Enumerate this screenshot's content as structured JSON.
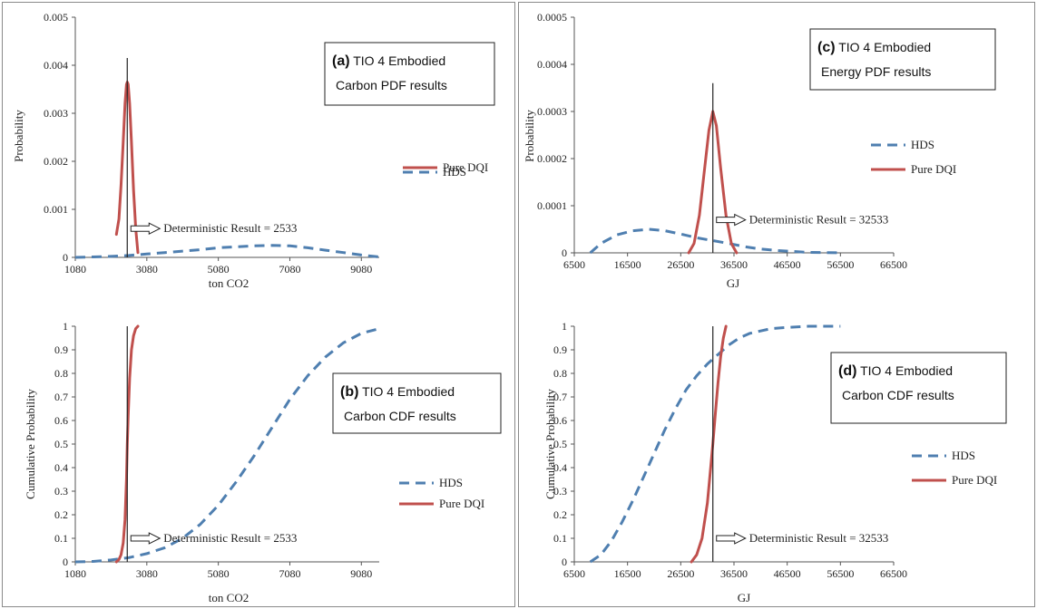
{
  "colors": {
    "hds": "#4f7fb0",
    "pure_dqi": "#c0504d",
    "line": "#222222"
  },
  "chart_data": [
    {
      "id": "a",
      "type": "line",
      "title_bold": "(a)",
      "title_line1": "TIO 4 Embodied",
      "title_line2": "Carbon PDF results",
      "xlabel": "ton CO2",
      "ylabel": "Probability",
      "xlim": [
        1080,
        9580
      ],
      "ylim": [
        0,
        0.005
      ],
      "xticks": [
        1080,
        3080,
        5080,
        7080,
        9080
      ],
      "yticks": [
        0,
        0.001,
        0.002,
        0.003,
        0.004,
        0.005
      ],
      "ytick_labels": [
        "0",
        "0.001",
        "0.002",
        "0.003",
        "0.004",
        "0.005"
      ],
      "deterministic": {
        "value": 2533,
        "label": "Deterministic Result = 2533",
        "arrow_y": 0.0006,
        "line_top": 0.00415
      },
      "series": [
        {
          "name": "HDS",
          "style": "dashed",
          "x": [
            1080,
            1580,
            2080,
            2580,
            3080,
            3580,
            4080,
            4580,
            5080,
            5580,
            6080,
            6580,
            7080,
            7580,
            8080,
            8580,
            9080,
            9580
          ],
          "y": [
            0,
            1e-05,
            2e-05,
            4e-05,
            7e-05,
            0.0001,
            0.00013,
            0.00016,
            0.0002,
            0.00022,
            0.00024,
            0.00025,
            0.00024,
            0.0002,
            0.00015,
            0.0001,
            5e-05,
            1e-05
          ]
        },
        {
          "name": "Pure DQI",
          "style": "solid",
          "x": [
            2230,
            2300,
            2360,
            2420,
            2470,
            2510,
            2533,
            2560,
            2600,
            2650,
            2710,
            2770,
            2830
          ],
          "y": [
            0.00048,
            0.0008,
            0.0015,
            0.0024,
            0.0032,
            0.0036,
            0.00365,
            0.0036,
            0.0032,
            0.0024,
            0.0014,
            0.0006,
            0.0001
          ]
        }
      ]
    },
    {
      "id": "b",
      "type": "line",
      "title_bold": "(b)",
      "title_line1": "TIO 4 Embodied",
      "title_line2": "Carbon CDF results",
      "xlabel": "ton CO2",
      "ylabel": "Cumulative Probability",
      "xlim": [
        1080,
        9580
      ],
      "ylim": [
        0,
        1
      ],
      "xticks": [
        1080,
        3080,
        5080,
        7080,
        9080
      ],
      "yticks": [
        0,
        0.1,
        0.2,
        0.3,
        0.4,
        0.5,
        0.6,
        0.7,
        0.8,
        0.9,
        1
      ],
      "ytick_labels": [
        "0",
        "0.1",
        "0.2",
        "0.3",
        "0.4",
        "0.5",
        "0.6",
        "0.7",
        "0.8",
        "0.9",
        "1"
      ],
      "deterministic": {
        "value": 2533,
        "label": "Deterministic Result = 2533",
        "arrow_y": 0.1,
        "line_top": 1
      },
      "series": [
        {
          "name": "HDS",
          "style": "dashed",
          "x": [
            1080,
            1580,
            2080,
            2580,
            3080,
            3580,
            4080,
            4580,
            5080,
            5580,
            6080,
            6580,
            7080,
            7580,
            8080,
            8580,
            9080,
            9580
          ],
          "y": [
            0,
            0.002,
            0.008,
            0.018,
            0.035,
            0.06,
            0.1,
            0.16,
            0.24,
            0.34,
            0.45,
            0.57,
            0.69,
            0.79,
            0.87,
            0.93,
            0.97,
            0.99
          ]
        },
        {
          "name": "Pure DQI",
          "style": "solid",
          "x": [
            2230,
            2300,
            2360,
            2420,
            2470,
            2510,
            2533,
            2560,
            2600,
            2650,
            2710,
            2770,
            2830
          ],
          "y": [
            0,
            0.01,
            0.03,
            0.08,
            0.18,
            0.35,
            0.5,
            0.62,
            0.78,
            0.9,
            0.96,
            0.99,
            1
          ]
        }
      ]
    },
    {
      "id": "c",
      "type": "line",
      "title_bold": "(c)",
      "title_line1": "TIO 4 Embodied",
      "title_line2": "Energy PDF results",
      "xlabel": "GJ",
      "ylabel": "Probability",
      "xlim": [
        6500,
        66500
      ],
      "ylim": [
        0,
        0.0005
      ],
      "xticks": [
        6500,
        16500,
        26500,
        36500,
        46500,
        56500,
        66500
      ],
      "yticks": [
        0,
        0.0001,
        0.0002,
        0.0003,
        0.0004,
        0.0005
      ],
      "ytick_labels": [
        "0",
        "0.0001",
        "0.0002",
        "0.0003",
        "0.0004",
        "0.0005"
      ],
      "deterministic": {
        "value": 32533,
        "label": "Deterministic Result = 32533",
        "arrow_y": 7e-05,
        "line_top": 0.00036
      },
      "series": [
        {
          "name": "HDS",
          "style": "dashed",
          "x": [
            9500,
            11500,
            14500,
            17500,
            20500,
            23500,
            26500,
            29500,
            32500,
            35500,
            38500,
            41500,
            44500,
            47500,
            50500,
            53500,
            56500
          ],
          "y": [
            0,
            2e-05,
            3.8e-05,
            4.7e-05,
            5e-05,
            4.7e-05,
            4e-05,
            3.2e-05,
            2.6e-05,
            2e-05,
            1.3e-05,
            8e-06,
            5e-06,
            3e-06,
            1e-06,
            5e-07,
            0
          ]
        },
        {
          "name": "Pure DQI",
          "style": "solid",
          "x": [
            28000,
            29000,
            30000,
            31000,
            31800,
            32533,
            33200,
            34000,
            35000,
            36000,
            37000
          ],
          "y": [
            0,
            2e-05,
            8e-05,
            0.00018,
            0.00026,
            0.0003,
            0.00027,
            0.00018,
            8e-05,
            2e-05,
            0
          ]
        }
      ]
    },
    {
      "id": "d",
      "type": "line",
      "title_bold": "(d)",
      "title_line1": "TIO 4 Embodied",
      "title_line2": "Carbon CDF results",
      "xlabel": "GJ",
      "ylabel": "Cumulative Probability",
      "xlim": [
        6500,
        66500
      ],
      "ylim": [
        0,
        1
      ],
      "xticks": [
        6500,
        16500,
        26500,
        36500,
        46500,
        56500,
        66500
      ],
      "yticks": [
        0,
        0.1,
        0.2,
        0.3,
        0.4,
        0.5,
        0.6,
        0.7,
        0.8,
        0.9,
        1
      ],
      "ytick_labels": [
        "0",
        "0.1",
        "0.2",
        "0.3",
        "0.4",
        "0.5",
        "0.6",
        "0.7",
        "0.8",
        "0.9",
        "1"
      ],
      "deterministic": {
        "value": 32533,
        "label": "Deterministic Result = 32533",
        "arrow_y": 0.1,
        "line_top": 1
      },
      "series": [
        {
          "name": "HDS",
          "style": "dashed",
          "x": [
            9500,
            11500,
            13500,
            15500,
            17500,
            19500,
            21500,
            23500,
            25500,
            27500,
            29500,
            31500,
            33500,
            35500,
            37500,
            39500,
            41500,
            43500,
            46500,
            50500,
            56500
          ],
          "y": [
            0,
            0.03,
            0.09,
            0.17,
            0.26,
            0.36,
            0.46,
            0.56,
            0.65,
            0.73,
            0.79,
            0.84,
            0.88,
            0.92,
            0.95,
            0.97,
            0.98,
            0.99,
            0.995,
            1,
            1
          ]
        },
        {
          "name": "Pure DQI",
          "style": "solid",
          "x": [
            28500,
            29500,
            30500,
            31500,
            32000,
            32533,
            33000,
            33500,
            34000,
            34500,
            35000
          ],
          "y": [
            0,
            0.03,
            0.1,
            0.25,
            0.37,
            0.5,
            0.63,
            0.76,
            0.87,
            0.95,
            1
          ]
        }
      ]
    }
  ]
}
